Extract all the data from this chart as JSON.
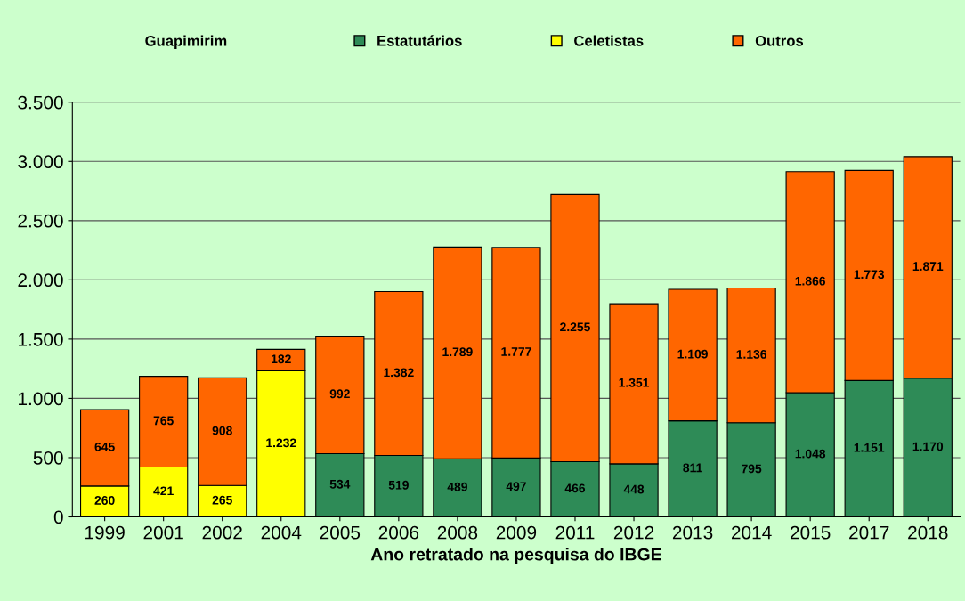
{
  "chart_data": {
    "type": "bar",
    "title": "Guapimirim",
    "xlabel": "Ano retratado na pesquisa do IBGE",
    "categories": [
      "1999",
      "2001",
      "2002",
      "2004",
      "2005",
      "2006",
      "2008",
      "2009",
      "2011",
      "2012",
      "2013",
      "2014",
      "2015",
      "2017",
      "2018"
    ],
    "stacked": true,
    "series": [
      {
        "name": "Estatutários",
        "color": "#2e8b57",
        "values": [
          null,
          null,
          null,
          null,
          534,
          519,
          489,
          497,
          466,
          448,
          811,
          795,
          1048,
          1151,
          1170
        ],
        "value_labels": [
          null,
          null,
          null,
          null,
          "534",
          "519",
          "489",
          "497",
          "466",
          "448",
          "811",
          "795",
          "1.048",
          "1.151",
          "1.170"
        ]
      },
      {
        "name": "Celetistas",
        "color": "#ffff00",
        "values": [
          260,
          421,
          265,
          1232,
          null,
          null,
          null,
          null,
          null,
          null,
          null,
          null,
          null,
          null,
          null
        ],
        "value_labels": [
          "260",
          "421",
          "265",
          "1.232",
          null,
          null,
          null,
          null,
          null,
          null,
          null,
          null,
          null,
          null,
          null
        ]
      },
      {
        "name": "Outros",
        "color": "#ff6600",
        "values": [
          645,
          765,
          908,
          182,
          992,
          1382,
          1789,
          1777,
          2255,
          1351,
          1109,
          1136,
          1866,
          1773,
          1871
        ],
        "value_labels": [
          "645",
          "765",
          "908",
          "182",
          "992",
          "1.382",
          "1.789",
          "1.777",
          "2.255",
          "1.351",
          "1.109",
          "1.136",
          "1.866",
          "1.773",
          "1.871"
        ]
      }
    ],
    "ylim": [
      0,
      3500
    ],
    "yticks": [
      {
        "value": 0,
        "label": "0"
      },
      {
        "value": 500,
        "label": "500"
      },
      {
        "value": 1000,
        "label": "1.000"
      },
      {
        "value": 1500,
        "label": "1.500"
      },
      {
        "value": 2000,
        "label": "2.000"
      },
      {
        "value": 2500,
        "label": "2.500"
      },
      {
        "value": 3000,
        "label": "3.000"
      },
      {
        "value": 3500,
        "label": "3.500"
      }
    ],
    "grid": "y",
    "legend": "top"
  }
}
